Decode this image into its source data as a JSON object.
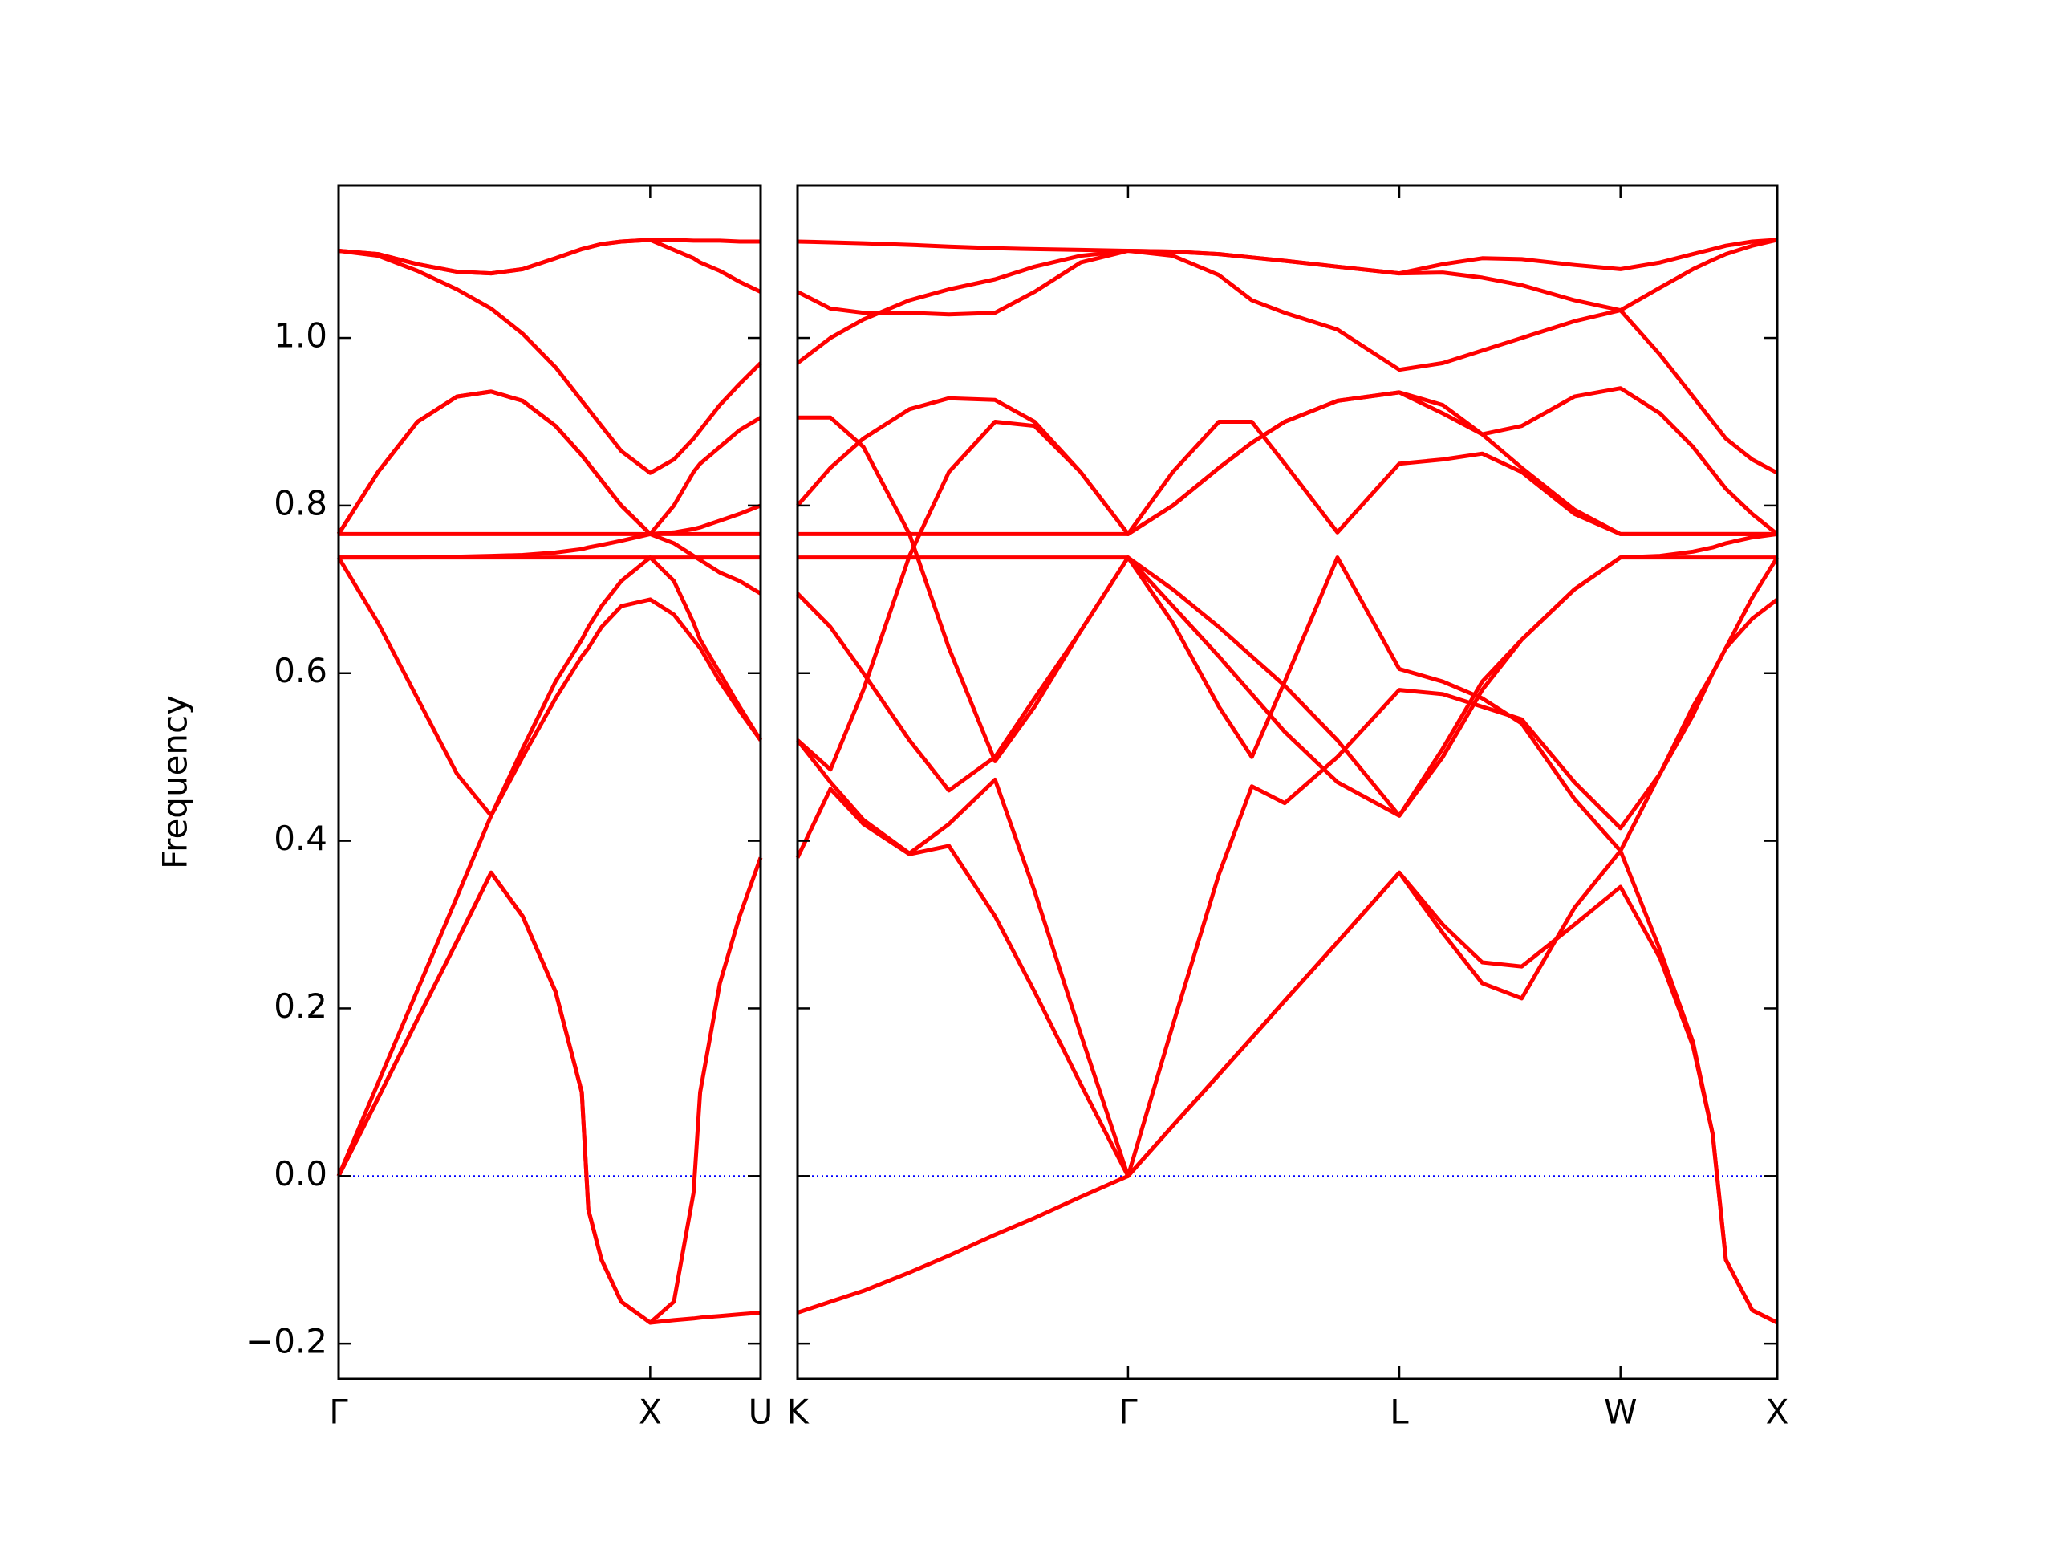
{
  "chart_data": [
    {
      "type": "line",
      "ylabel": "Frequency",
      "color": "#ff0000",
      "hline": 0,
      "hline_color": "#0000ff",
      "x": [
        0,
        0.03,
        0.06,
        0.09,
        0.116,
        0.14,
        0.165,
        0.185,
        0.19,
        0.2,
        0.215,
        0.237,
        0.255,
        0.27,
        0.275,
        0.29,
        0.305,
        0.321
      ],
      "xlim": [
        0,
        0.321
      ],
      "xticks": [
        {
          "value": 0,
          "label": "Γ"
        },
        {
          "value": 0.237,
          "label": "X"
        },
        {
          "value": 0.321,
          "label": "U"
        }
      ],
      "ylim": [
        -0.242,
        1.182
      ],
      "yticks": [
        {
          "value": -0.2,
          "label": "−0.2"
        },
        {
          "value": 0,
          "label": "0.0"
        },
        0.2,
        0.4,
        0.6,
        0.8,
        {
          "value": 1,
          "label": "1.0"
        }
      ],
      "series": [
        {
          "values": [
            0,
            0.093,
            0.187,
            0.28,
            0.362,
            0.31,
            0.22,
            0.1,
            -0.04,
            -0.1,
            -0.15,
            -0.175,
            -0.15,
            -0.02,
            0.1,
            0.23,
            0.31,
            0.38
          ]
        },
        {
          "values": [
            0,
            0.093,
            0.187,
            0.28,
            0.362,
            0.31,
            0.22,
            0.1,
            -0.04,
            -0.1,
            -0.15,
            -0.175,
            -0.172,
            -0.17,
            -0.169,
            -0.167,
            -0.165,
            -0.163
          ]
        },
        {
          "values": [
            0,
            0.111,
            0.222,
            0.333,
            0.43,
            0.5,
            0.57,
            0.62,
            0.63,
            0.655,
            0.68,
            0.688,
            0.67,
            0.64,
            0.63,
            0.59,
            0.555,
            0.52
          ]
        },
        {
          "values": [
            0.738,
            0.66,
            0.57,
            0.48,
            0.43,
            0.51,
            0.59,
            0.64,
            0.655,
            0.68,
            0.71,
            0.738,
            0.71,
            0.66,
            0.64,
            0.6,
            0.56,
            0.52
          ]
        },
        {
          "values": [
            0.738,
            0.738,
            0.738,
            0.739,
            0.74,
            0.741,
            0.744,
            0.748,
            0.75,
            0.753,
            0.758,
            0.766,
            0.768,
            0.772,
            0.774,
            0.782,
            0.79,
            0.8
          ]
        },
        {
          "values": [
            0.766,
            0.766,
            0.766,
            0.766,
            0.766,
            0.766,
            0.766,
            0.766,
            0.766,
            0.766,
            0.766,
            0.766,
            0.766,
            0.766,
            0.766,
            0.766,
            0.766,
            0.766
          ]
        },
        {
          "values": [
            0.766,
            0.84,
            0.9,
            0.93,
            0.936,
            0.925,
            0.895,
            0.86,
            0.85,
            0.83,
            0.8,
            0.766,
            0.8,
            0.84,
            0.85,
            0.87,
            0.89,
            0.905
          ]
        },
        {
          "values": [
            0.766,
            0.84,
            0.9,
            0.93,
            0.936,
            0.925,
            0.895,
            0.86,
            0.85,
            0.83,
            0.8,
            0.766,
            0.755,
            0.74,
            0.735,
            0.72,
            0.71,
            0.695
          ]
        },
        {
          "values": [
            0.738,
            0.738,
            0.738,
            0.738,
            0.738,
            0.738,
            0.738,
            0.738,
            0.738,
            0.738,
            0.738,
            0.738,
            0.738,
            0.738,
            0.738,
            0.738,
            0.738,
            0.738
          ]
        },
        {
          "values": [
            1.104,
            1.1,
            1.088,
            1.079,
            1.077,
            1.082,
            1.095,
            1.106,
            1.108,
            1.112,
            1.115,
            1.117,
            1.117,
            1.116,
            1.116,
            1.116,
            1.115,
            1.115
          ]
        },
        {
          "values": [
            1.104,
            1.098,
            1.08,
            1.058,
            1.035,
            1.005,
            0.965,
            0.925,
            0.915,
            0.895,
            0.865,
            0.839,
            0.855,
            0.88,
            0.89,
            0.92,
            0.945,
            0.97
          ]
        },
        {
          "values": [
            1.104,
            1.1,
            1.088,
            1.079,
            1.077,
            1.082,
            1.095,
            1.106,
            1.108,
            1.112,
            1.115,
            1.117,
            1.105,
            1.095,
            1.09,
            1.08,
            1.067,
            1.055
          ]
        }
      ]
    },
    {
      "type": "line",
      "color": "#ff0000",
      "hline": 0,
      "hline_color": "#0000ff",
      "ytick_labels": false,
      "x": [
        0.321,
        0.346,
        0.371,
        0.406,
        0.436,
        0.471,
        0.501,
        0.536,
        0.572,
        0.606,
        0.641,
        0.666,
        0.691,
        0.731,
        0.778,
        0.811,
        0.841,
        0.871,
        0.911,
        0.946,
        0.976,
        1.001,
        1.016,
        1.026,
        1.046,
        1.065
      ],
      "xlim": [
        0.321,
        1.065
      ],
      "xticks": [
        {
          "value": 0.321,
          "label": "K"
        },
        {
          "value": 0.572,
          "label": "Γ"
        },
        {
          "value": 0.778,
          "label": "L"
        },
        {
          "value": 0.946,
          "label": "W"
        },
        {
          "value": 1.065,
          "label": "X"
        }
      ],
      "ylim": [
        -0.242,
        1.182
      ],
      "yticks": [
        -0.2,
        0,
        0.2,
        0.4,
        0.6,
        0.8,
        1
      ],
      "series": [
        {
          "values": [
            -0.163,
            -0.15,
            -0.137,
            -0.115,
            -0.095,
            -0.07,
            -0.05,
            -0.025,
            0,
            0.06,
            0.121,
            0.165,
            0.209,
            0.279,
            0.362,
            0.3,
            0.255,
            0.25,
            0.3,
            0.345,
            0.26,
            0.155,
            0.05,
            -0.1,
            -0.16,
            -0.175
          ]
        },
        {
          "values": [
            0.38,
            0.462,
            0.42,
            0.384,
            0.394,
            0.31,
            0.22,
            0.11,
            0,
            0.18,
            0.36,
            0.465,
            0.445,
            0.5,
            0.58,
            0.575,
            0.56,
            0.545,
            0.47,
            0.415,
            0.48,
            0.55,
            0.6,
            0.63,
            0.69,
            0.738
          ]
        },
        {
          "values": [
            0.52,
            0.485,
            0.58,
            0.74,
            0.84,
            0.9,
            0.895,
            0.84,
            0.766,
            0.84,
            0.9,
            0.9,
            0.85,
            0.768,
            0.85,
            0.855,
            0.862,
            0.84,
            0.79,
            0.766,
            0.766,
            0.766,
            0.766,
            0.766,
            0.766,
            0.766
          ]
        },
        {
          "values": [
            0.52,
            0.47,
            0.425,
            0.385,
            0.42,
            0.473,
            0.34,
            0.17,
            0,
            0.06,
            0.121,
            0.165,
            0.209,
            0.279,
            0.362,
            0.29,
            0.23,
            0.212,
            0.32,
            0.388,
            0.27,
            0.16,
            0.05,
            -0.1,
            -0.16,
            -0.175
          ]
        },
        {
          "values": [
            0.695,
            0.655,
            0.6,
            0.52,
            0.46,
            0.5,
            0.57,
            0.65,
            0.738,
            0.66,
            0.56,
            0.5,
            0.59,
            0.738,
            0.605,
            0.59,
            0.57,
            0.54,
            0.45,
            0.388,
            0.48,
            0.56,
            0.6,
            0.63,
            0.665,
            0.688
          ]
        },
        {
          "values": [
            0.738,
            0.738,
            0.738,
            0.738,
            0.738,
            0.738,
            0.738,
            0.738,
            0.738,
            0.7,
            0.655,
            0.62,
            0.585,
            0.52,
            0.43,
            0.51,
            0.59,
            0.64,
            0.7,
            0.738,
            0.738,
            0.738,
            0.738,
            0.738,
            0.738,
            0.738
          ]
        },
        {
          "values": [
            0.766,
            0.766,
            0.766,
            0.766,
            0.766,
            0.766,
            0.766,
            0.766,
            0.766,
            0.8,
            0.845,
            0.875,
            0.9,
            0.925,
            0.935,
            0.91,
            0.885,
            0.895,
            0.93,
            0.94,
            0.91,
            0.87,
            0.84,
            0.82,
            0.79,
            0.766
          ]
        },
        {
          "values": [
            0.8,
            0.845,
            0.88,
            0.915,
            0.928,
            0.926,
            0.9,
            0.84,
            0.766,
            0.8,
            0.845,
            0.875,
            0.9,
            0.925,
            0.935,
            0.92,
            0.885,
            0.845,
            0.795,
            0.766,
            0.766,
            0.766,
            0.766,
            0.766,
            0.766,
            0.766
          ]
        },
        {
          "values": [
            0.905,
            0.905,
            0.87,
            0.766,
            0.63,
            0.495,
            0.56,
            0.65,
            0.738,
            0.68,
            0.62,
            0.575,
            0.53,
            0.47,
            0.43,
            0.5,
            0.58,
            0.64,
            0.7,
            0.738,
            0.74,
            0.745,
            0.75,
            0.755,
            0.762,
            0.766
          ]
        },
        {
          "values": [
            0.97,
            1.0,
            1.022,
            1.045,
            1.058,
            1.07,
            1.085,
            1.098,
            1.104,
            1.098,
            1.075,
            1.045,
            1.03,
            1.01,
            0.962,
            0.97,
            0.985,
            1.0,
            1.02,
            1.033,
            0.98,
            0.93,
            0.9,
            0.88,
            0.855,
            0.839
          ]
        },
        {
          "values": [
            1.055,
            1.035,
            1.03,
            1.03,
            1.028,
            1.03,
            1.055,
            1.09,
            1.104,
            1.103,
            1.1,
            1.096,
            1.092,
            1.085,
            1.077,
            1.078,
            1.072,
            1.063,
            1.045,
            1.033,
            1.06,
            1.082,
            1.093,
            1.1,
            1.11,
            1.117
          ]
        },
        {
          "values": [
            1.115,
            1.114,
            1.113,
            1.111,
            1.109,
            1.107,
            1.106,
            1.105,
            1.104,
            1.103,
            1.1,
            1.096,
            1.092,
            1.085,
            1.077,
            1.088,
            1.095,
            1.094,
            1.087,
            1.082,
            1.09,
            1.1,
            1.106,
            1.11,
            1.115,
            1.117
          ]
        }
      ]
    }
  ]
}
